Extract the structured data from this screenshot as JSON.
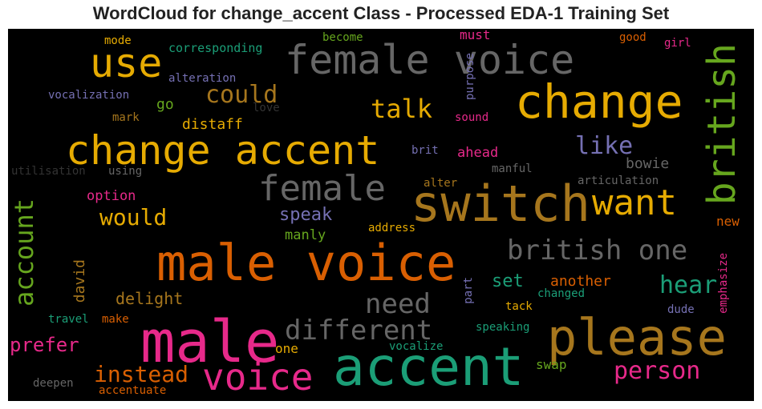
{
  "title": "WordCloud for change_accent Class - Processed EDA-1 Training Set",
  "palette": {
    "background": "#000000",
    "orange": "#d95f02",
    "gold": "#e6ab02",
    "teal": "#1b9e77",
    "purple": "#7570b3",
    "pink": "#e7298a",
    "green": "#66a61e",
    "brown": "#a6761d",
    "gray": "#666666"
  },
  "words": [
    "male voice",
    "accent",
    "male",
    "please",
    "switch",
    "change",
    "change accent",
    "female voice",
    "use",
    "voice",
    "british",
    "female",
    "want",
    "different",
    "british one",
    "need",
    "person",
    "account",
    "instead",
    "talk",
    "could",
    "hear",
    "like",
    "would",
    "prefer",
    "speak",
    "set",
    "delight",
    "another",
    "david",
    "bowie",
    "distaff",
    "manly",
    "option",
    "one",
    "swap",
    "mode",
    "corresponding",
    "become",
    "must",
    "good",
    "girl",
    "alteration",
    "vocalization",
    "go",
    "love",
    "purpose",
    "mark",
    "sound",
    "brit",
    "ahead",
    "utilisation",
    "using",
    "manful",
    "alter",
    "articulation",
    "address",
    "new",
    "part",
    "emphasize",
    "changed",
    "tack",
    "dude",
    "travel",
    "make",
    "speaking",
    "vocalize",
    "deepen",
    "accentuate"
  ]
}
